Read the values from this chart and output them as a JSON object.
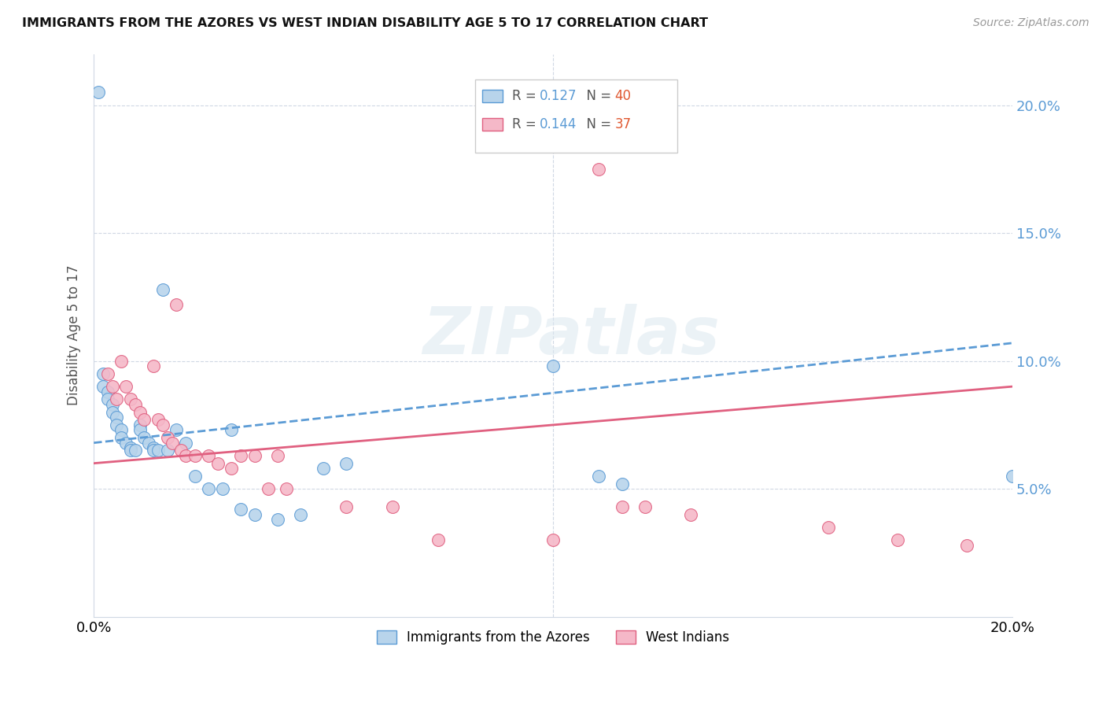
{
  "title": "IMMIGRANTS FROM THE AZORES VS WEST INDIAN DISABILITY AGE 5 TO 17 CORRELATION CHART",
  "source": "Source: ZipAtlas.com",
  "ylabel": "Disability Age 5 to 17",
  "xlim": [
    0.0,
    0.2
  ],
  "ylim": [
    0.0,
    0.22
  ],
  "yticks": [
    0.05,
    0.1,
    0.15,
    0.2
  ],
  "ytick_labels": [
    "5.0%",
    "10.0%",
    "15.0%",
    "20.0%"
  ],
  "xticks": [
    0.0,
    0.05,
    0.1,
    0.15,
    0.2
  ],
  "xtick_labels": [
    "0.0%",
    "",
    "",
    "",
    "20.0%"
  ],
  "legend_label1": "Immigrants from the Azores",
  "legend_label2": "West Indians",
  "R1": 0.127,
  "N1": 40,
  "R2": 0.144,
  "N2": 37,
  "color1": "#b8d4eb",
  "color2": "#f5b8c8",
  "line_color1": "#5b9bd5",
  "line_color2": "#e06080",
  "watermark": "ZIPatlas",
  "azores_x": [
    0.001,
    0.002,
    0.002,
    0.003,
    0.003,
    0.004,
    0.004,
    0.005,
    0.005,
    0.006,
    0.006,
    0.007,
    0.008,
    0.008,
    0.009,
    0.01,
    0.01,
    0.011,
    0.012,
    0.013,
    0.013,
    0.014,
    0.015,
    0.016,
    0.018,
    0.02,
    0.022,
    0.025,
    0.028,
    0.03,
    0.032,
    0.035,
    0.04,
    0.045,
    0.05,
    0.055,
    0.1,
    0.11,
    0.115,
    0.2
  ],
  "azores_y": [
    0.205,
    0.095,
    0.09,
    0.088,
    0.085,
    0.083,
    0.08,
    0.078,
    0.075,
    0.073,
    0.07,
    0.068,
    0.066,
    0.065,
    0.065,
    0.075,
    0.073,
    0.07,
    0.068,
    0.066,
    0.065,
    0.065,
    0.128,
    0.065,
    0.073,
    0.068,
    0.055,
    0.05,
    0.05,
    0.073,
    0.042,
    0.04,
    0.038,
    0.04,
    0.058,
    0.06,
    0.098,
    0.055,
    0.052,
    0.055
  ],
  "westindian_x": [
    0.003,
    0.004,
    0.005,
    0.006,
    0.007,
    0.008,
    0.009,
    0.01,
    0.011,
    0.013,
    0.014,
    0.015,
    0.016,
    0.017,
    0.018,
    0.019,
    0.02,
    0.022,
    0.025,
    0.027,
    0.03,
    0.032,
    0.035,
    0.038,
    0.04,
    0.042,
    0.055,
    0.065,
    0.075,
    0.1,
    0.11,
    0.115,
    0.12,
    0.13,
    0.16,
    0.175,
    0.19
  ],
  "westindian_y": [
    0.095,
    0.09,
    0.085,
    0.1,
    0.09,
    0.085,
    0.083,
    0.08,
    0.077,
    0.098,
    0.077,
    0.075,
    0.07,
    0.068,
    0.122,
    0.065,
    0.063,
    0.063,
    0.063,
    0.06,
    0.058,
    0.063,
    0.063,
    0.05,
    0.063,
    0.05,
    0.043,
    0.043,
    0.03,
    0.03,
    0.175,
    0.043,
    0.043,
    0.04,
    0.035,
    0.03,
    0.028
  ],
  "trend_azores_x0": 0.0,
  "trend_azores_x1": 0.2,
  "trend_azores_y0": 0.068,
  "trend_azores_y1": 0.107,
  "trend_west_x0": 0.0,
  "trend_west_x1": 0.2,
  "trend_west_y0": 0.06,
  "trend_west_y1": 0.09
}
